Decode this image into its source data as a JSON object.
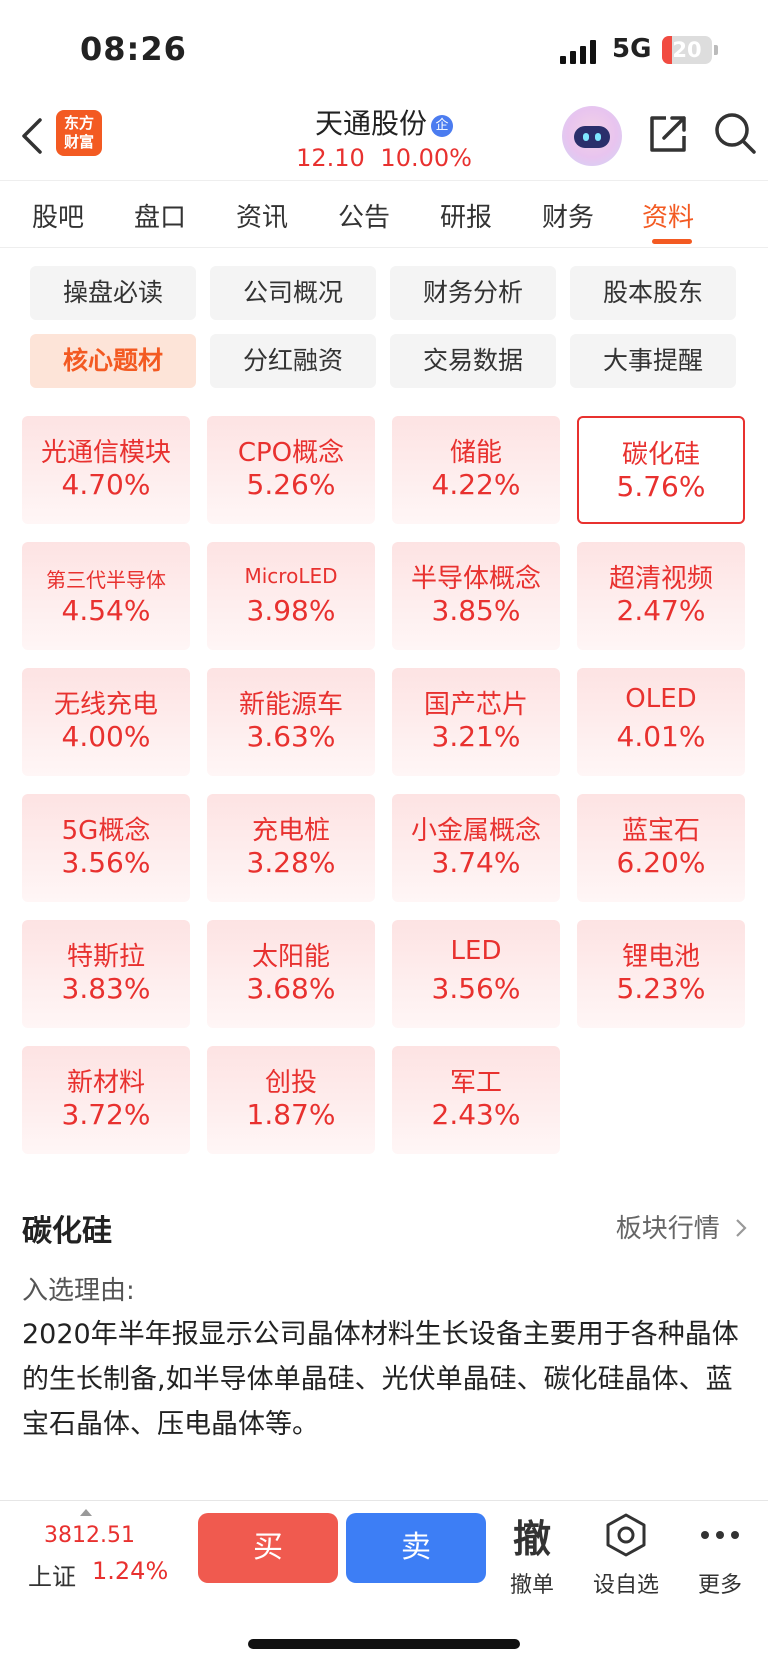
{
  "status": {
    "time": "08:26",
    "network": "5G",
    "battery": "20",
    "battery_level": 0.2
  },
  "header": {
    "logo_line1": "东方",
    "logo_line2": "财富",
    "title": "天通股份",
    "title_badge": "企",
    "price": "12.10",
    "change": "10.00%"
  },
  "tabs": [
    "股吧",
    "盘口",
    "资讯",
    "公告",
    "研报",
    "财务",
    "资料"
  ],
  "active_tab": 6,
  "sub_tabs": [
    "操盘必读",
    "公司概况",
    "财务分析",
    "股本股东",
    "核心题材",
    "分红融资",
    "交易数据",
    "大事提醒"
  ],
  "active_sub_tab": 4,
  "concepts": [
    {
      "name": "光通信模块",
      "pct": "4.70%"
    },
    {
      "name": "CPO概念",
      "pct": "5.26%"
    },
    {
      "name": "储能",
      "pct": "4.22%"
    },
    {
      "name": "碳化硅",
      "pct": "5.76%"
    },
    {
      "name": "第三代半导体",
      "pct": "4.54%"
    },
    {
      "name": "MicroLED",
      "pct": "3.98%"
    },
    {
      "name": "半导体概念",
      "pct": "3.85%"
    },
    {
      "name": "超清视频",
      "pct": "2.47%"
    },
    {
      "name": "无线充电",
      "pct": "4.00%"
    },
    {
      "name": "新能源车",
      "pct": "3.63%"
    },
    {
      "name": "国产芯片",
      "pct": "3.21%"
    },
    {
      "name": "OLED",
      "pct": "4.01%"
    },
    {
      "name": "5G概念",
      "pct": "3.56%"
    },
    {
      "name": "充电桩",
      "pct": "3.28%"
    },
    {
      "name": "小金属概念",
      "pct": "3.74%"
    },
    {
      "name": "蓝宝石",
      "pct": "6.20%"
    },
    {
      "name": "特斯拉",
      "pct": "3.83%"
    },
    {
      "name": "太阳能",
      "pct": "3.68%"
    },
    {
      "name": "LED",
      "pct": "3.56%"
    },
    {
      "name": "锂电池",
      "pct": "5.23%"
    },
    {
      "name": "新材料",
      "pct": "3.72%"
    },
    {
      "name": "创投",
      "pct": "1.87%"
    },
    {
      "name": "军工",
      "pct": "2.43%"
    }
  ],
  "selected_concept": 3,
  "detail": {
    "title": "碳化硅",
    "link": "板块行情",
    "reason_label": "入选理由:",
    "reason": "2020年半年报显示公司晶体材料生长设备主要用于各种晶体的生长制备,如半导体单晶硅、光伏单晶硅、碳化硅晶体、蓝宝石晶体、压电晶体等。"
  },
  "bottom": {
    "index_value": "3812.51",
    "index_name": "上证",
    "index_pct": "1.24%",
    "buy": "买",
    "sell": "卖",
    "cancel_icon": "撤",
    "cancel": "撤单",
    "watch": "设自选",
    "more": "更多"
  },
  "colors": {
    "up": "#e8312f",
    "accent": "#f35a22",
    "buy": "#f05a4f",
    "sell": "#3d7ef5"
  }
}
